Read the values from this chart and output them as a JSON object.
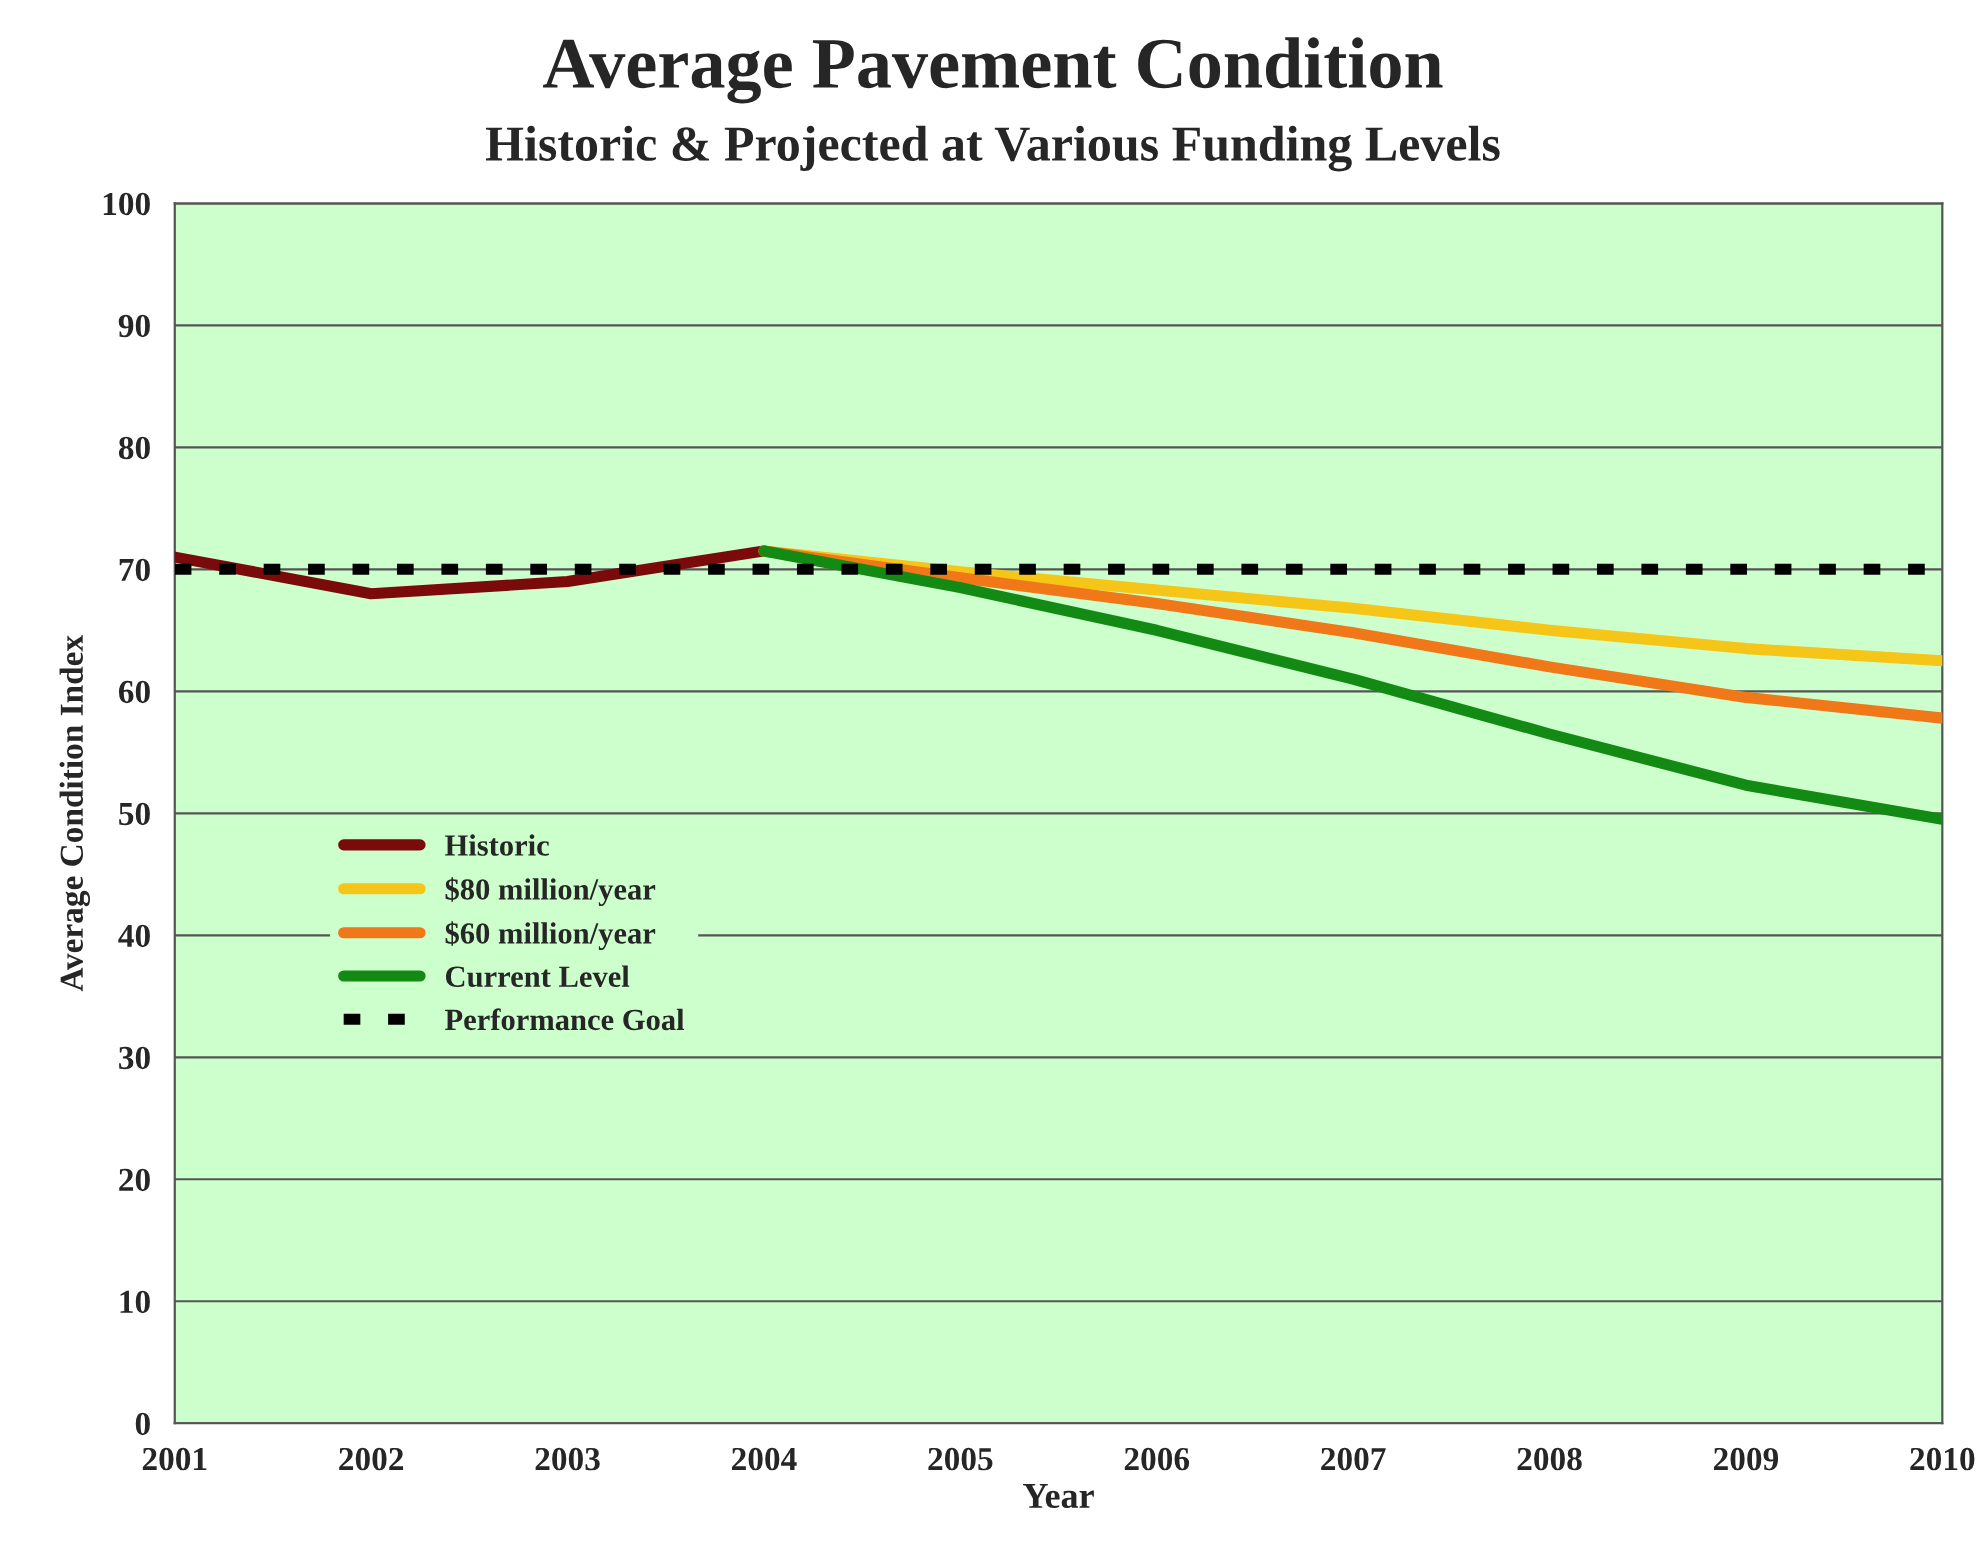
{
  "chart_data": {
    "type": "line",
    "title": "Average Pavement Condition",
    "subtitle": "Historic & Projected at Various Funding Levels",
    "xlabel": "Year",
    "ylabel": "Average Condition Index",
    "xlim": [
      2001,
      2010
    ],
    "xticks": [
      2001,
      2002,
      2003,
      2004,
      2005,
      2006,
      2007,
      2008,
      2009,
      2010
    ],
    "ylim": [
      0,
      100
    ],
    "yticks": [
      0,
      10,
      20,
      30,
      40,
      50,
      60,
      70,
      80,
      90,
      100
    ],
    "grid": "y",
    "legend": "left",
    "marker": "none",
    "series": [
      {
        "name": "Historic",
        "color": "#7b0a0a",
        "x": [
          2001,
          2002,
          2003,
          2004
        ],
        "values": [
          71,
          68,
          69,
          71.5
        ]
      },
      {
        "name": "$80 million/year",
        "color": "#f5c518",
        "x": [
          2004,
          2005,
          2006,
          2007,
          2008,
          2009,
          2010
        ],
        "values": [
          71.5,
          69.8,
          68.3,
          66.8,
          65,
          63.5,
          62.5
        ]
      },
      {
        "name": "$60 million/year",
        "color": "#f07818",
        "x": [
          2004,
          2005,
          2006,
          2007,
          2008,
          2009,
          2010
        ],
        "values": [
          71.5,
          69.3,
          67.2,
          64.8,
          62,
          59.5,
          57.8
        ]
      },
      {
        "name": "Current Level",
        "color": "#138a13",
        "x": [
          2004,
          2005,
          2006,
          2007,
          2008,
          2009,
          2010
        ],
        "values": [
          71.5,
          68.5,
          65,
          61,
          56.5,
          52.3,
          49.5
        ]
      },
      {
        "name": "Performance Goal",
        "color": "#000000",
        "line_style": "dashed",
        "x": [
          2001,
          2010
        ],
        "values": [
          70,
          70
        ]
      }
    ]
  }
}
